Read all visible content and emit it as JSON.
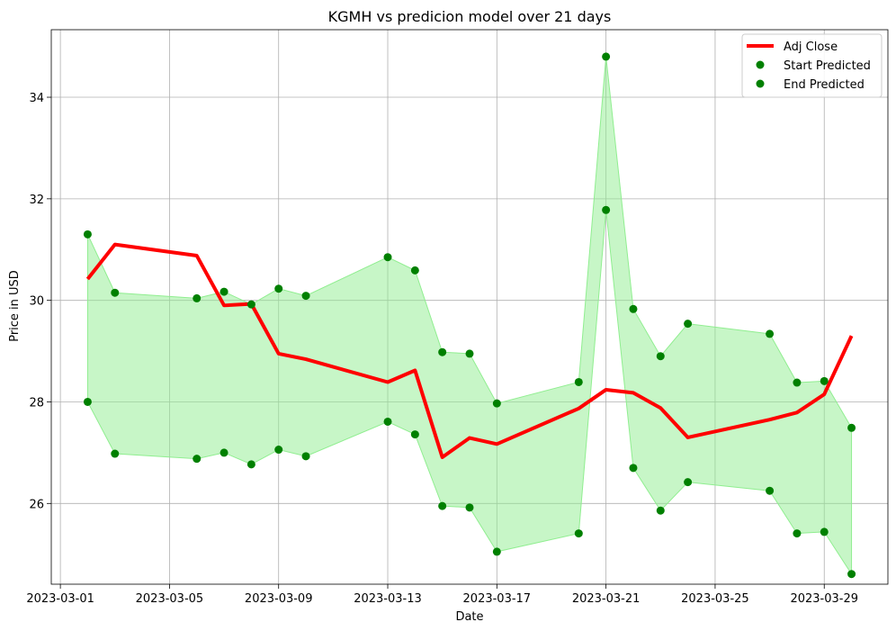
{
  "chart_data": {
    "type": "line",
    "title": "KGMH vs predicion model over 21 days",
    "xlabel": "Date",
    "ylabel": "Price in USD",
    "xlim": [
      "2023-02-28T16:00",
      "2023-03-31T08:00"
    ],
    "ylim": [
      24.41,
      35.33
    ],
    "grid": true,
    "legend_position": "top-right",
    "x_ticks": [
      "2023-03-01",
      "2023-03-05",
      "2023-03-09",
      "2023-03-13",
      "2023-03-17",
      "2023-03-21",
      "2023-03-25",
      "2023-03-29"
    ],
    "y_ticks": [
      26,
      28,
      30,
      32,
      34
    ],
    "colors": {
      "adj_close": "#ff0000",
      "predicted": "#008000",
      "band": "#90ee90"
    },
    "dates": [
      "2023-03-02",
      "2023-03-03",
      "2023-03-06",
      "2023-03-07",
      "2023-03-08",
      "2023-03-09",
      "2023-03-10",
      "2023-03-13",
      "2023-03-14",
      "2023-03-15",
      "2023-03-16",
      "2023-03-17",
      "2023-03-20",
      "2023-03-21",
      "2023-03-22",
      "2023-03-23",
      "2023-03-24",
      "2023-03-27",
      "2023-03-28",
      "2023-03-29",
      "2023-03-30"
    ],
    "series": [
      {
        "name": "Adj Close",
        "style": "line",
        "values": [
          30.42,
          31.1,
          30.88,
          29.9,
          29.93,
          28.95,
          28.84,
          28.39,
          28.62,
          26.91,
          27.29,
          27.17,
          27.87,
          28.24,
          28.18,
          27.88,
          27.3,
          27.65,
          27.79,
          28.15,
          29.3
        ]
      },
      {
        "name": "Start Predicted",
        "style": "marker",
        "values": [
          31.3,
          30.15,
          30.04,
          30.17,
          29.92,
          30.23,
          30.09,
          30.85,
          30.59,
          28.98,
          28.95,
          27.97,
          28.39,
          34.8,
          29.83,
          28.9,
          29.54,
          29.34,
          28.38,
          28.41,
          27.49
        ]
      },
      {
        "name": "End Predicted",
        "style": "marker",
        "values": [
          28.0,
          26.98,
          26.88,
          27.0,
          26.77,
          27.06,
          26.93,
          27.61,
          27.36,
          25.95,
          25.92,
          25.05,
          25.41,
          31.78,
          26.7,
          25.86,
          26.42,
          26.25,
          25.41,
          25.44,
          24.61
        ]
      }
    ]
  }
}
